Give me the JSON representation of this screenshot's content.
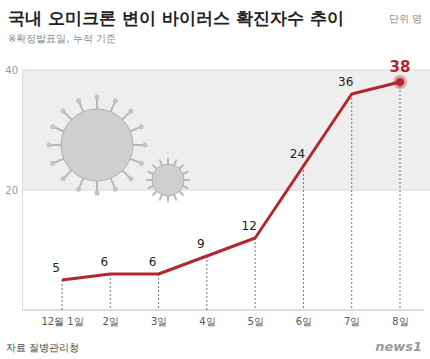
{
  "chart_data": {
    "type": "line",
    "title": "국내 오미크론 변이 바이러스 확진자수 추이",
    "subtitle": "※확정발표일, 누적 기준",
    "unit": "단위 명",
    "source": "자료 질병관리청",
    "watermark": "news1",
    "categories": [
      "12월 1일",
      "2일",
      "3일",
      "4일",
      "5일",
      "6일",
      "7일",
      "8일"
    ],
    "values": [
      5,
      6,
      6,
      9,
      12,
      24,
      36,
      38
    ],
    "color": "#b3262e",
    "ylim": [
      0,
      40
    ],
    "yticks": [
      20,
      40
    ],
    "grid": true,
    "data_labels": true
  }
}
